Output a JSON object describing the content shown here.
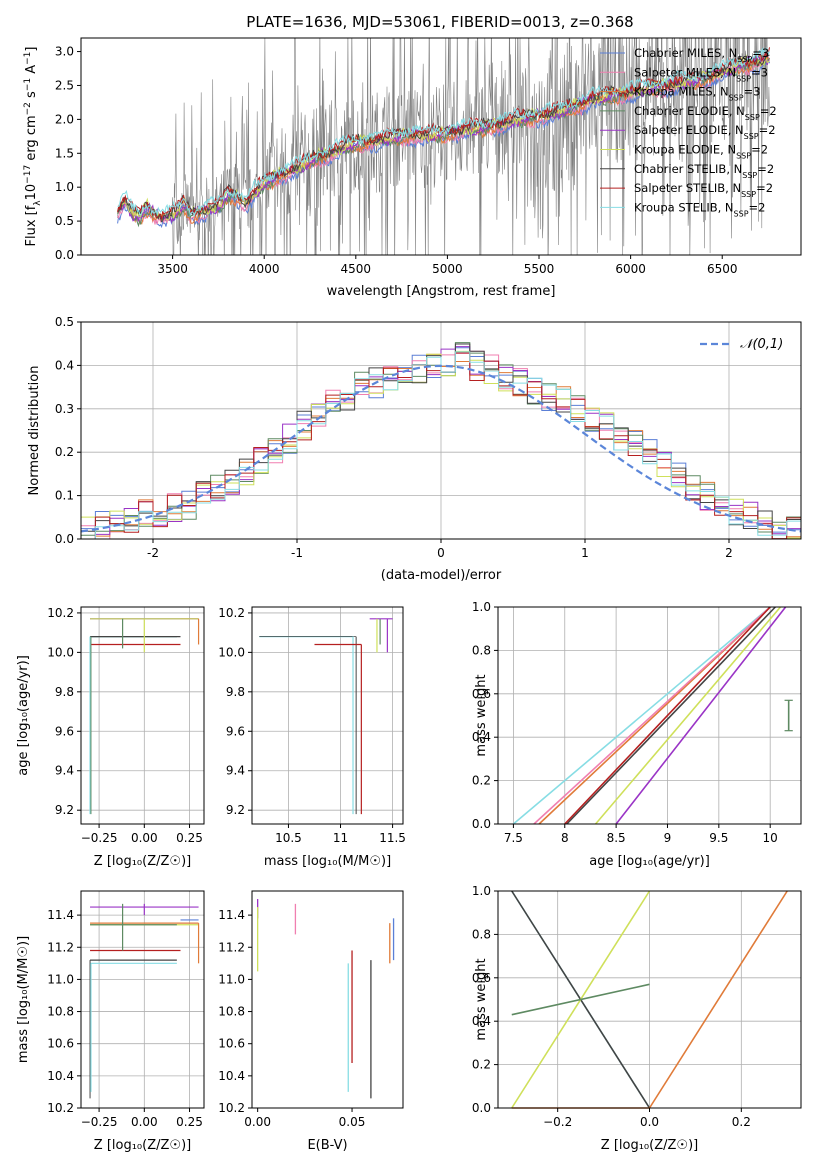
{
  "title": "PLATE=1636, MJD=53061, FIBERID=0013, z=0.368",
  "colors": {
    "Chabrier MILES": "#5b7fd6",
    "Salpeter MILES": "#f07fb0",
    "Kroupa MILES": "#e07b39",
    "Chabrier ELODIE": "#5e8a62",
    "Salpeter ELODIE": "#9a34c6",
    "Kroupa ELODIE": "#cfe05a",
    "Chabrier STELIB": "#444444",
    "Salpeter STELIB": "#b52020",
    "Kroupa STELIB": "#87dde4",
    "data": "#808080",
    "gauss": "#5b86d9"
  },
  "chart_data": [
    {
      "type": "line",
      "xlabel": "wavelength [Angstrom, rest frame]",
      "ylabel": "Flux [f_λ 10^-17 erg cm^-2 s^-1 A^-1]",
      "xlim": [
        3000,
        6930
      ],
      "ylim": [
        0,
        3.2
      ],
      "xticks": [
        3500,
        4000,
        4500,
        5000,
        5500,
        6000,
        6500
      ],
      "yticks": [
        0.0,
        0.5,
        1.0,
        1.5,
        2.0,
        2.5,
        3.0
      ],
      "legend_position": "top-right",
      "legend": [
        {
          "main": "Chabrier MILES, N",
          "sub": "SSP",
          "tail": "=3"
        },
        {
          "main": "Salpeter MILES, N",
          "sub": "SSP",
          "tail": "=3"
        },
        {
          "main": "Kroupa MILES, N",
          "sub": "SSP",
          "tail": "=3"
        },
        {
          "main": "Chabrier ELODIE, N",
          "sub": "SSP",
          "tail": "=2"
        },
        {
          "main": "Salpeter ELODIE, N",
          "sub": "SSP",
          "tail": "=2"
        },
        {
          "main": "Kroupa ELODIE, N",
          "sub": "SSP",
          "tail": "=2"
        },
        {
          "main": "Chabrier STELIB, N",
          "sub": "SSP",
          "tail": "=2"
        },
        {
          "main": "Salpeter STELIB, N",
          "sub": "SSP",
          "tail": "=2"
        },
        {
          "main": "Kroupa STELIB, N",
          "sub": "SSP",
          "tail": "=2"
        }
      ],
      "model_continuum": [
        [
          3200,
          0.62
        ],
        [
          3240,
          0.8
        ],
        [
          3280,
          0.62
        ],
        [
          3320,
          0.55
        ],
        [
          3360,
          0.7
        ],
        [
          3400,
          0.6
        ],
        [
          3440,
          0.55
        ],
        [
          3480,
          0.58
        ],
        [
          3520,
          0.62
        ],
        [
          3560,
          0.75
        ],
        [
          3600,
          0.6
        ],
        [
          3640,
          0.62
        ],
        [
          3700,
          0.68
        ],
        [
          3760,
          0.72
        ],
        [
          3800,
          0.9
        ],
        [
          3850,
          0.85
        ],
        [
          3900,
          0.75
        ],
        [
          3960,
          0.95
        ],
        [
          4000,
          1.05
        ],
        [
          4100,
          1.2
        ],
        [
          4200,
          1.3
        ],
        [
          4300,
          1.45
        ],
        [
          4400,
          1.55
        ],
        [
          4500,
          1.65
        ],
        [
          4600,
          1.68
        ],
        [
          4700,
          1.72
        ],
        [
          4800,
          1.78
        ],
        [
          4900,
          1.75
        ],
        [
          5000,
          1.8
        ],
        [
          5100,
          1.85
        ],
        [
          5200,
          1.88
        ],
        [
          5300,
          1.95
        ],
        [
          5400,
          2.0
        ],
        [
          5500,
          2.05
        ],
        [
          5600,
          2.1
        ],
        [
          5700,
          2.2
        ],
        [
          5800,
          2.3
        ],
        [
          5900,
          2.35
        ],
        [
          6000,
          2.4
        ],
        [
          6100,
          2.45
        ],
        [
          6200,
          2.5
        ],
        [
          6300,
          2.55
        ],
        [
          6400,
          2.6
        ],
        [
          6500,
          2.7
        ],
        [
          6600,
          2.8
        ],
        [
          6700,
          2.85
        ],
        [
          6750,
          2.9
        ]
      ]
    },
    {
      "type": "line",
      "xlabel": "(data-model)/error",
      "ylabel": "Normed distribution",
      "xlim": [
        -2.5,
        2.5
      ],
      "ylim": [
        0,
        0.5
      ],
      "xticks": [
        -2,
        -1,
        0,
        1,
        2
      ],
      "yticks": [
        0.0,
        0.1,
        0.2,
        0.3,
        0.4,
        0.5
      ],
      "legend": "𝒩(0,1)",
      "legend_position": "top-right",
      "bin_width": 0.1,
      "series_reference": [
        0.02,
        0.03,
        0.04,
        0.05,
        0.06,
        0.06,
        0.07,
        0.08,
        0.1,
        0.12,
        0.13,
        0.16,
        0.18,
        0.2,
        0.23,
        0.26,
        0.29,
        0.31,
        0.33,
        0.35,
        0.36,
        0.37,
        0.38,
        0.39,
        0.4,
        0.41,
        0.42,
        0.4,
        0.39,
        0.37,
        0.36,
        0.34,
        0.33,
        0.32,
        0.3,
        0.28,
        0.26,
        0.24,
        0.22,
        0.2,
        0.17,
        0.14,
        0.12,
        0.1,
        0.08,
        0.06,
        0.05,
        0.04,
        0.03,
        0.02
      ]
    },
    {
      "type": "scatter",
      "xlabel": "Z [log10(Z/Z☉)]",
      "ylabel": "age [log10(age/yr)]",
      "xlim": [
        -0.35,
        0.33
      ],
      "ylim": [
        9.13,
        10.23
      ],
      "xticks": [
        -0.25,
        0.0,
        0.25
      ],
      "xticklabels": [
        "−0.25",
        "0.00",
        "0.25"
      ],
      "yticks": [
        9.2,
        9.4,
        9.6,
        9.8,
        10.0,
        10.2
      ]
    },
    {
      "type": "scatter",
      "xlabel": "mass [log10(M/M☉)]",
      "ylabel": "",
      "xlim": [
        10.15,
        11.6
      ],
      "ylim": [
        9.13,
        10.23
      ],
      "xticks": [
        10.5,
        11.0,
        11.5
      ],
      "yticks": [
        9.2,
        9.4,
        9.6,
        9.8,
        10.0,
        10.2
      ]
    },
    {
      "type": "line",
      "xlabel": "age [log10(age/yr)]",
      "ylabel": "mass weight",
      "xlim": [
        7.35,
        10.3
      ],
      "ylim": [
        0,
        1
      ],
      "xticks": [
        7.5,
        8.0,
        8.5,
        9.0,
        9.5,
        10.0
      ],
      "yticks": [
        0.0,
        0.2,
        0.4,
        0.6,
        0.8,
        1.0
      ]
    },
    {
      "type": "scatter",
      "xlabel": "Z [log10(Z/Z☉)]",
      "ylabel": "mass [log10(M/M☉)]",
      "xlim": [
        -0.35,
        0.33
      ],
      "ylim": [
        10.2,
        11.55
      ],
      "xticks": [
        -0.25,
        0.0,
        0.25
      ],
      "xticklabels": [
        "−0.25",
        "0.00",
        "0.25"
      ],
      "yticks": [
        10.2,
        10.4,
        10.6,
        10.8,
        11.0,
        11.2,
        11.4
      ]
    },
    {
      "type": "scatter",
      "xlabel": "E(B-V)",
      "ylabel": "",
      "xlim": [
        -0.003,
        0.077
      ],
      "ylim": [
        10.2,
        11.55
      ],
      "xticks": [
        0.0,
        0.05
      ],
      "xticklabels": [
        "0.00",
        "0.05"
      ],
      "yticks": [
        10.2,
        10.4,
        10.6,
        10.8,
        11.0,
        11.2,
        11.4
      ]
    },
    {
      "type": "line",
      "xlabel": "Z [log10(Z/Z☉)]",
      "ylabel": "mass weight",
      "xlim": [
        -0.33,
        0.33
      ],
      "ylim": [
        0,
        1
      ],
      "xticks": [
        -0.2,
        0.0,
        0.2
      ],
      "xticklabels": [
        "−0.2",
        "0.0",
        "0.2"
      ],
      "yticks": [
        0.0,
        0.2,
        0.4,
        0.6,
        0.8,
        1.0
      ]
    }
  ]
}
